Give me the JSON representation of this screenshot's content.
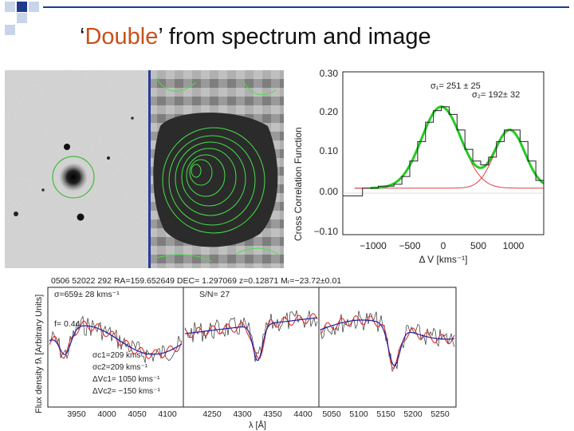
{
  "slide": {
    "title_quote_open": "‘",
    "title_highlight": "Double",
    "title_quote_close": "’",
    "title_rest": " from spectrum and image"
  },
  "ccf_plot": {
    "ylabel": "Cross Correlation Function",
    "xlabel": "Δ V [kms⁻¹]",
    "sigma1_text": "σ₁= 251 ± 25",
    "sigma2_text": "σ₂= 192± 32",
    "y_ticks": [
      "0.30",
      "0.20",
      "0.10",
      "0.00",
      "−0.10"
    ],
    "x_ticks": [
      "−1000",
      "−500",
      "0",
      "500",
      "1000"
    ],
    "colors": {
      "data": "#222222",
      "fit": "#22cc22",
      "components": "#e04040"
    },
    "chart_data": {
      "type": "line",
      "xlim": [
        -1250,
        1300
      ],
      "ylim": [
        -0.12,
        0.3
      ],
      "series": [
        {
          "x": [
            -1250,
            -1000,
            -800,
            -600,
            -500,
            -400,
            -300,
            -200,
            -100,
            0,
            100,
            200,
            300,
            400,
            500,
            600,
            700,
            800,
            900,
            1000,
            1100,
            1200,
            1300
          ],
          "y": [
            -0.02,
            0.0,
            0.005,
            0.01,
            0.03,
            0.07,
            0.12,
            0.17,
            0.2,
            0.21,
            0.19,
            0.15,
            0.1,
            0.07,
            0.06,
            0.08,
            0.12,
            0.15,
            0.15,
            0.12,
            0.07,
            0.02,
            0.0
          ]
        }
      ]
    }
  },
  "spectrum_plot": {
    "header_text": "0506 52022 292   RA=159.652649  DEC=   1.297069  z=0.12871  Mᵣ=−23.72±0.01",
    "sigma_text": "σ=659±  28  kms⁻¹",
    "sn_text": "S/N=  27",
    "f_text": "f=  0.44",
    "params": [
      "σc1=209  kms⁻¹",
      "σc2=209  kms⁻¹",
      "ΔVc1=   1050  kms⁻¹",
      "ΔVc2=   −150  kms⁻¹"
    ],
    "ylabel": "Flux density  fλ [Arbitrary Units]",
    "xlabel": "λ [Å]",
    "x_ticks_1": [
      "3950",
      "4000",
      "4050",
      "4100"
    ],
    "x_ticks_2": [
      "4250",
      "4300",
      "4350",
      "4400"
    ],
    "x_ticks_3": [
      "5050",
      "5100",
      "5150",
      "5200",
      "5250"
    ],
    "colors": {
      "data": "#333333",
      "model_red": "#e03030",
      "model_blue": "#2020a0"
    }
  }
}
